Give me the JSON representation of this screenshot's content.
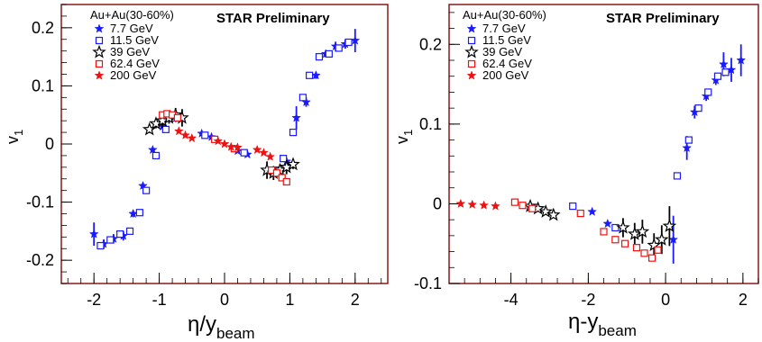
{
  "colors": {
    "frame": "#8b1a1a",
    "blue": "#1a1aff",
    "black": "#000000",
    "red": "#ee1111"
  },
  "legend": {
    "header": "Au+Au(30-60%)",
    "entries": [
      {
        "label": "7.7  GeV",
        "marker": "filled-star",
        "color": "blue"
      },
      {
        "label": "11.5  GeV",
        "marker": "open-square",
        "color": "blue"
      },
      {
        "label": "39   GeV",
        "marker": "open-star",
        "color": "black"
      },
      {
        "label": "62.4 GeV",
        "marker": "open-square",
        "color": "red"
      },
      {
        "label": "200  GeV",
        "marker": "filled-star",
        "color": "red"
      }
    ]
  },
  "chart_data": [
    {
      "type": "scatter",
      "title": "STAR Preliminary",
      "xlabel": "η/y",
      "xlabel_sub": "beam",
      "ylabel": "v",
      "ylabel_sub": "1",
      "xlim": [
        -2.5,
        2.5
      ],
      "ylim": [
        -0.24,
        0.24
      ],
      "xticks": [
        -2,
        -1,
        0,
        1,
        2
      ],
      "xtick_labels": [
        "-2",
        "-1",
        "0",
        "1",
        "2"
      ],
      "yticks": [
        -0.2,
        -0.1,
        0,
        0.1,
        0.2
      ],
      "ytick_labels": [
        "-0.2",
        "-0.1",
        "0",
        "0.1",
        "0.2"
      ],
      "legend_position": "top-left",
      "series": [
        {
          "name": "7.7  GeV",
          "marker": "filled-star",
          "color": "blue",
          "points": [
            [
              -2.0,
              -0.155,
              0.02
            ],
            [
              -1.85,
              -0.172,
              0.008
            ],
            [
              -1.7,
              -0.163,
              0.008
            ],
            [
              -1.55,
              -0.158,
              0.008
            ],
            [
              -1.4,
              -0.12,
              0.006
            ],
            [
              -1.25,
              -0.072,
              0.005
            ],
            [
              -1.1,
              -0.01,
              0.004
            ],
            [
              -0.95,
              0.03,
              0.004
            ],
            [
              -0.35,
              0.018,
              0.003
            ],
            [
              -0.2,
              0.012,
              0.003
            ],
            [
              0.2,
              -0.012,
              0.003
            ],
            [
              0.35,
              -0.018,
              0.003
            ],
            [
              0.95,
              -0.03,
              0.004
            ],
            [
              1.1,
              0.045,
              0.02
            ],
            [
              1.25,
              0.072,
              0.008
            ],
            [
              1.4,
              0.118,
              0.006
            ],
            [
              1.55,
              0.155,
              0.006
            ],
            [
              1.7,
              0.168,
              0.008
            ],
            [
              1.85,
              0.172,
              0.008
            ],
            [
              2.0,
              0.178,
              0.02
            ]
          ]
        },
        {
          "name": "11.5  GeV",
          "marker": "open-square",
          "color": "blue",
          "points": [
            [
              -1.9,
              -0.175,
              0
            ],
            [
              -1.75,
              -0.165,
              0
            ],
            [
              -1.6,
              -0.155,
              0
            ],
            [
              -1.45,
              -0.15,
              0
            ],
            [
              -1.3,
              -0.118,
              0
            ],
            [
              -1.2,
              -0.08,
              0
            ],
            [
              -1.05,
              -0.02,
              0
            ],
            [
              -0.9,
              0.025,
              0
            ],
            [
              -0.8,
              0.045,
              0
            ],
            [
              -0.3,
              0.015,
              0
            ],
            [
              0.3,
              -0.015,
              0
            ],
            [
              0.8,
              -0.045,
              0
            ],
            [
              0.9,
              -0.025,
              0
            ],
            [
              1.05,
              0.02,
              0
            ],
            [
              1.2,
              0.08,
              0
            ],
            [
              1.3,
              0.118,
              0
            ],
            [
              1.45,
              0.15,
              0
            ],
            [
              1.6,
              0.155,
              0
            ],
            [
              1.75,
              0.165,
              0
            ],
            [
              1.9,
              0.175,
              0
            ]
          ]
        },
        {
          "name": "39   GeV",
          "marker": "open-star",
          "color": "black",
          "points": [
            [
              -1.15,
              0.025,
              0.006
            ],
            [
              -1.05,
              0.035,
              0.008
            ],
            [
              -0.95,
              0.04,
              0.012
            ],
            [
              -0.85,
              0.045,
              0.01
            ],
            [
              -0.75,
              0.05,
              0.012
            ],
            [
              -0.65,
              0.045,
              0.015
            ],
            [
              0.65,
              -0.045,
              0.015
            ],
            [
              0.75,
              -0.05,
              0.012
            ],
            [
              0.85,
              -0.045,
              0.01
            ],
            [
              0.95,
              -0.04,
              0.012
            ],
            [
              1.05,
              -0.035,
              0.008
            ]
          ]
        },
        {
          "name": "62.4 GeV",
          "marker": "open-square",
          "color": "red",
          "points": [
            [
              -0.95,
              0.05,
              0
            ],
            [
              -0.88,
              0.052,
              0
            ],
            [
              -0.8,
              0.05,
              0
            ],
            [
              -0.72,
              0.045,
              0
            ],
            [
              -0.15,
              0.008,
              0
            ],
            [
              0.15,
              -0.008,
              0
            ],
            [
              0.72,
              -0.045,
              0
            ],
            [
              0.8,
              -0.05,
              0
            ],
            [
              0.88,
              -0.058,
              0
            ],
            [
              0.95,
              -0.065,
              0
            ]
          ]
        },
        {
          "name": "200  GeV",
          "marker": "filled-star",
          "color": "red",
          "points": [
            [
              -0.7,
              0.022,
              0
            ],
            [
              -0.6,
              0.015,
              0
            ],
            [
              -0.5,
              0.01,
              0
            ],
            [
              -0.1,
              0.005,
              0
            ],
            [
              0.0,
              0.0,
              0
            ],
            [
              0.1,
              -0.005,
              0
            ],
            [
              0.2,
              -0.006,
              0
            ],
            [
              0.5,
              -0.01,
              0
            ],
            [
              0.6,
              -0.015,
              0
            ],
            [
              0.7,
              -0.022,
              0
            ]
          ]
        }
      ]
    },
    {
      "type": "scatter",
      "title": "STAR Preliminary",
      "xlabel": "η-y",
      "xlabel_sub": "beam",
      "ylabel": "v",
      "ylabel_sub": "1",
      "xlim": [
        -5.6,
        2.4
      ],
      "ylim": [
        -0.1,
        0.25
      ],
      "xticks": [
        -4,
        -2,
        0,
        2
      ],
      "xtick_labels": [
        "-4",
        "-2",
        "0",
        "2"
      ],
      "yticks": [
        -0.1,
        0,
        0.1,
        0.2
      ],
      "ytick_labels": [
        "-0.1",
        "0",
        "0.1",
        "0.2"
      ],
      "legend_position": "top-left",
      "series": [
        {
          "name": "7.7  GeV",
          "marker": "filled-star",
          "color": "blue",
          "points": [
            [
              -1.9,
              -0.01,
              0
            ],
            [
              -1.5,
              -0.025,
              0
            ],
            [
              0.2,
              -0.045,
              0.03
            ],
            [
              0.55,
              0.07,
              0.015
            ],
            [
              0.75,
              0.115,
              0.008
            ],
            [
              1.05,
              0.135,
              0.006
            ],
            [
              1.3,
              0.155,
              0.006
            ],
            [
              1.5,
              0.175,
              0.015
            ],
            [
              1.7,
              0.168,
              0.015
            ],
            [
              1.95,
              0.18,
              0.02
            ]
          ]
        },
        {
          "name": "11.5  GeV",
          "marker": "open-square",
          "color": "blue",
          "points": [
            [
              -2.4,
              -0.003,
              0
            ],
            [
              -1.3,
              -0.03,
              0
            ],
            [
              0.3,
              0.035,
              0
            ],
            [
              0.6,
              0.08,
              0
            ],
            [
              0.85,
              0.12,
              0
            ],
            [
              1.1,
              0.14,
              0
            ],
            [
              1.35,
              0.16,
              0
            ],
            [
              1.55,
              0.165,
              0
            ]
          ]
        },
        {
          "name": "39   GeV",
          "marker": "open-star",
          "color": "black",
          "points": [
            [
              -3.5,
              -0.003,
              0.003
            ],
            [
              -3.3,
              -0.006,
              0.003
            ],
            [
              -3.1,
              -0.01,
              0.004
            ],
            [
              -2.9,
              -0.014,
              0.004
            ],
            [
              -1.1,
              -0.03,
              0.012
            ],
            [
              -0.8,
              -0.038,
              0.014
            ],
            [
              -0.6,
              -0.035,
              0.015
            ],
            [
              -0.3,
              -0.052,
              0.015
            ],
            [
              -0.1,
              -0.045,
              0.018
            ],
            [
              0.1,
              -0.028,
              0.025
            ]
          ]
        },
        {
          "name": "62.4 GeV",
          "marker": "open-square",
          "color": "red",
          "points": [
            [
              -3.9,
              0.002,
              0
            ],
            [
              -3.7,
              -0.002,
              0
            ],
            [
              -3.45,
              -0.006,
              0
            ],
            [
              -2.2,
              -0.012,
              0
            ],
            [
              -1.6,
              -0.035,
              0
            ],
            [
              -1.3,
              -0.045,
              0
            ],
            [
              -1.05,
              -0.05,
              0
            ],
            [
              -0.75,
              -0.055,
              0
            ],
            [
              -0.55,
              -0.062,
              0
            ],
            [
              -0.35,
              -0.068,
              0
            ],
            [
              -0.2,
              -0.058,
              0
            ]
          ]
        },
        {
          "name": "200  GeV",
          "marker": "filled-star",
          "color": "red",
          "points": [
            [
              -5.3,
              0.0,
              0
            ],
            [
              -5.0,
              -0.001,
              0
            ],
            [
              -4.7,
              -0.002,
              0
            ],
            [
              -4.4,
              -0.003,
              0
            ]
          ]
        }
      ]
    }
  ]
}
